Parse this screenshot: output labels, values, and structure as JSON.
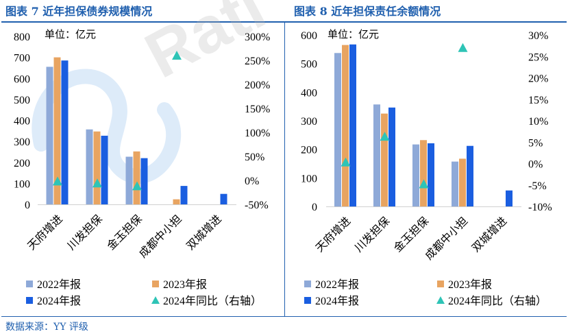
{
  "titles": {
    "left": "图表 7 近年担保债券规模情况",
    "right": "图表 8 近年担保责任余额情况"
  },
  "source": "数据来源：YY 评级",
  "watermark": "Rati",
  "colors": {
    "s2022": "#8ea9d8",
    "s2023": "#e8a461",
    "s2024": "#1a5ee0",
    "yoy": "#2ec4b6",
    "title": "#1f5fae"
  },
  "chart_data": [
    {
      "type": "bar",
      "title": "图表 7 近年担保债券规模情况",
      "unit_label": "单位：亿元",
      "categories": [
        "天府增进",
        "川发担保",
        "金玉担保",
        "成都中小担",
        "双城增进"
      ],
      "series": [
        {
          "name": "2022年报",
          "values": [
            655,
            357,
            227,
            null,
            null
          ]
        },
        {
          "name": "2023年报",
          "values": [
            700,
            347,
            252,
            24,
            null
          ]
        },
        {
          "name": "2024年报",
          "values": [
            685,
            327,
            220,
            88,
            50
          ]
        }
      ],
      "yoy": {
        "name": "2024年同比（右轴）",
        "values": [
          -0.02,
          -0.06,
          -0.12,
          2.6,
          null
        ]
      },
      "ylim": [
        0,
        800
      ],
      "yticks": [
        0,
        100,
        200,
        300,
        400,
        500,
        600,
        700,
        800
      ],
      "y2lim": [
        -0.5,
        3.0
      ],
      "y2ticks": [
        "-50%",
        "0%",
        "50%",
        "100%",
        "150%",
        "200%",
        "250%",
        "300%"
      ],
      "legend_position": "bottom"
    },
    {
      "type": "bar",
      "title": "图表 8 近年担保责任余额情况",
      "unit_label": "单位：亿元",
      "categories": [
        "天府增进",
        "川发担保",
        "金玉担保",
        "成都中小担",
        "双城增进"
      ],
      "series": [
        {
          "name": "2022年报",
          "values": [
            537,
            357,
            217,
            157,
            null
          ]
        },
        {
          "name": "2023年报",
          "values": [
            565,
            325,
            232,
            167,
            null
          ]
        },
        {
          "name": "2024年报",
          "values": [
            567,
            346,
            221,
            212,
            56
          ]
        }
      ],
      "yoy": {
        "name": "2024年同比（右轴）",
        "values": [
          0.003,
          0.063,
          -0.048,
          0.27,
          null
        ]
      },
      "ylim": [
        0,
        600
      ],
      "yticks": [
        0,
        100,
        200,
        300,
        400,
        500,
        600
      ],
      "y2lim": [
        -0.1,
        0.3
      ],
      "y2ticks": [
        "-10%",
        "-5%",
        "0%",
        "5%",
        "10%",
        "15%",
        "20%",
        "25%",
        "30%"
      ],
      "legend_position": "bottom"
    }
  ]
}
